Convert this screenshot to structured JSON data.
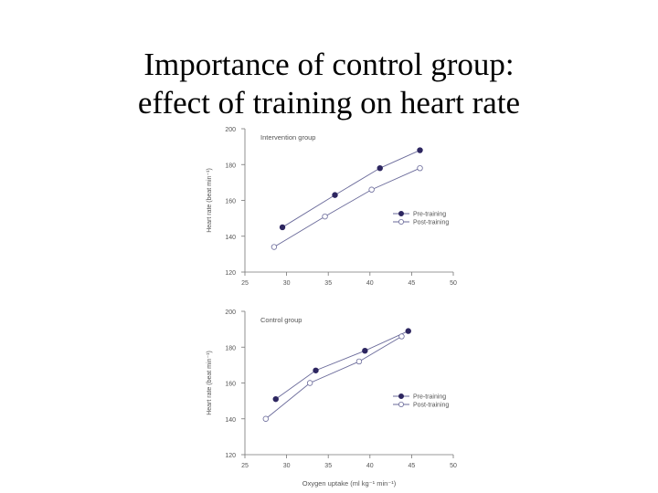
{
  "slide": {
    "title_line1": "Importance of control group:",
    "title_line2": "effect of training on heart rate"
  },
  "colors": {
    "series_line": "#6a6a9a",
    "pre_marker": "#2d2660",
    "post_marker_fill": "#ffffff",
    "axis": "#777777",
    "text": "#555555"
  },
  "chart_data": [
    {
      "type": "line",
      "title": "Intervention group",
      "xlabel": "",
      "ylabel": "Heart rate (beat min⁻¹)",
      "xlim": [
        25,
        50
      ],
      "ylim": [
        120,
        200
      ],
      "xticks": [
        25,
        30,
        35,
        40,
        45,
        50
      ],
      "yticks": [
        120,
        140,
        160,
        180,
        200
      ],
      "legend_position": "lower-right",
      "series": [
        {
          "name": "Pre-training",
          "marker": "filled",
          "x": [
            29.5,
            35.8,
            41.2,
            46.0
          ],
          "y": [
            145,
            163,
            178,
            188
          ]
        },
        {
          "name": "Post-training",
          "marker": "open",
          "x": [
            28.5,
            34.6,
            40.2,
            46.0
          ],
          "y": [
            134,
            151,
            166,
            178
          ]
        }
      ]
    },
    {
      "type": "line",
      "title": "Control group",
      "xlabel": "Oxygen uptake (ml kg⁻¹ min⁻¹)",
      "ylabel": "Heart rate (beat min⁻¹)",
      "xlim": [
        25,
        50
      ],
      "ylim": [
        120,
        200
      ],
      "xticks": [
        25,
        30,
        35,
        40,
        45,
        50
      ],
      "yticks": [
        120,
        140,
        160,
        180,
        200
      ],
      "legend_position": "lower-right",
      "series": [
        {
          "name": "Pre-training",
          "marker": "filled",
          "x": [
            28.7,
            33.5,
            39.4,
            44.6
          ],
          "y": [
            151,
            167,
            178,
            189
          ]
        },
        {
          "name": "Post-training",
          "marker": "open",
          "x": [
            27.5,
            32.8,
            38.7,
            43.8
          ],
          "y": [
            140,
            160,
            172,
            186
          ]
        }
      ]
    }
  ]
}
